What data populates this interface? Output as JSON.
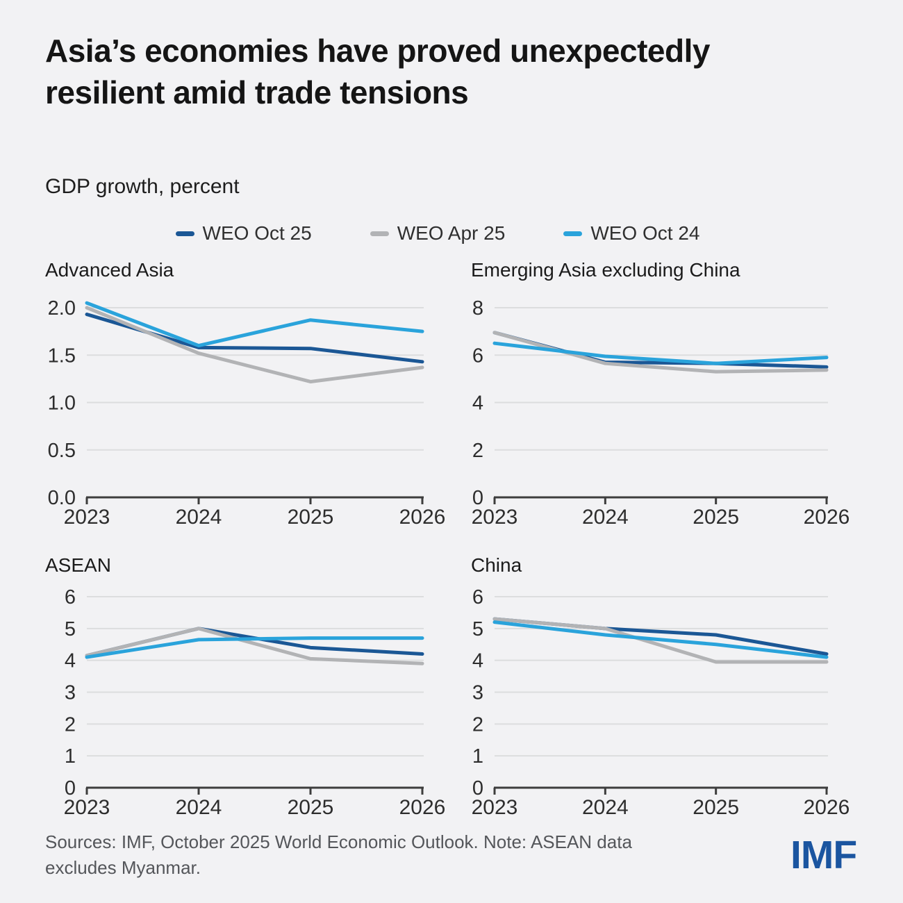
{
  "page": {
    "title": "Asia’s economies have proved unexpectedly resilient amid trade tensions",
    "subtitle": "GDP growth, percent"
  },
  "colors": {
    "weo_oct_25": "#1b5795",
    "weo_apr_25": "#b2b3b5",
    "weo_oct_24": "#2aa3db",
    "gridline": "#dcddde",
    "axis": "#3d3d3d",
    "background": "#f2f2f4",
    "logo_blue": "#1b55a0"
  },
  "legend": {
    "items": [
      {
        "label": "WEO Oct 25",
        "series": "weo_oct_25"
      },
      {
        "label": "WEO Apr 25",
        "series": "weo_apr_25"
      },
      {
        "label": "WEO Oct 24",
        "series": "weo_oct_24"
      }
    ]
  },
  "chart_data": [
    {
      "type": "line",
      "title": "Advanced Asia",
      "x": [
        "2023",
        "2024",
        "2025",
        "2026"
      ],
      "ylim": [
        0,
        2
      ],
      "grid": true,
      "legend_position": "top",
      "yticks": [
        {
          "v": 0,
          "label": "0.0"
        },
        {
          "v": 0.5,
          "label": "0.5"
        },
        {
          "v": 1,
          "label": "1.0"
        },
        {
          "v": 1.5,
          "label": "1.5"
        },
        {
          "v": 2,
          "label": "2.0"
        }
      ],
      "series": [
        {
          "name": "WEO Oct 25",
          "color_key": "weo_oct_25",
          "values": [
            1.93,
            1.58,
            1.57,
            1.43
          ]
        },
        {
          "name": "WEO Apr 25",
          "color_key": "weo_apr_25",
          "values": [
            2.0,
            1.52,
            1.22,
            1.37
          ]
        },
        {
          "name": "WEO Oct 24",
          "color_key": "weo_oct_24",
          "values": [
            2.05,
            1.6,
            1.87,
            1.75
          ]
        }
      ]
    },
    {
      "type": "line",
      "title": "Emerging Asia excluding China",
      "x": [
        "2023",
        "2024",
        "2025",
        "2026"
      ],
      "ylim": [
        0,
        8
      ],
      "grid": true,
      "legend_position": "top",
      "yticks": [
        {
          "v": 0,
          "label": "0"
        },
        {
          "v": 2,
          "label": "2"
        },
        {
          "v": 4,
          "label": "4"
        },
        {
          "v": 6,
          "label": "6"
        },
        {
          "v": 8,
          "label": "8"
        }
      ],
      "series": [
        {
          "name": "WEO Oct 25",
          "color_key": "weo_oct_25",
          "values": [
            6.95,
            5.7,
            5.65,
            5.5
          ]
        },
        {
          "name": "WEO Apr 25",
          "color_key": "weo_apr_25",
          "values": [
            6.95,
            5.65,
            5.3,
            5.37
          ]
        },
        {
          "name": "WEO Oct 24",
          "color_key": "weo_oct_24",
          "values": [
            6.5,
            5.95,
            5.65,
            5.9
          ]
        }
      ]
    },
    {
      "type": "line",
      "title": "ASEAN",
      "x": [
        "2023",
        "2024",
        "2025",
        "2026"
      ],
      "ylim": [
        0,
        6
      ],
      "grid": true,
      "legend_position": "top",
      "yticks": [
        {
          "v": 0,
          "label": "0"
        },
        {
          "v": 1,
          "label": "1"
        },
        {
          "v": 2,
          "label": "2"
        },
        {
          "v": 3,
          "label": "3"
        },
        {
          "v": 4,
          "label": "4"
        },
        {
          "v": 5,
          "label": "5"
        },
        {
          "v": 6,
          "label": "6"
        }
      ],
      "series": [
        {
          "name": "WEO Oct 25",
          "color_key": "weo_oct_25",
          "values": [
            4.15,
            5.0,
            4.4,
            4.2
          ]
        },
        {
          "name": "WEO Apr 25",
          "color_key": "weo_apr_25",
          "values": [
            4.15,
            5.0,
            4.05,
            3.9
          ]
        },
        {
          "name": "WEO Oct 24",
          "color_key": "weo_oct_24",
          "values": [
            4.1,
            4.65,
            4.7,
            4.7
          ]
        }
      ]
    },
    {
      "type": "line",
      "title": "China",
      "x": [
        "2023",
        "2024",
        "2025",
        "2026"
      ],
      "ylim": [
        0,
        6
      ],
      "grid": true,
      "legend_position": "top",
      "yticks": [
        {
          "v": 0,
          "label": "0"
        },
        {
          "v": 1,
          "label": "1"
        },
        {
          "v": 2,
          "label": "2"
        },
        {
          "v": 3,
          "label": "3"
        },
        {
          "v": 4,
          "label": "4"
        },
        {
          "v": 5,
          "label": "5"
        },
        {
          "v": 6,
          "label": "6"
        }
      ],
      "series": [
        {
          "name": "WEO Oct 25",
          "color_key": "weo_oct_25",
          "values": [
            5.3,
            5.0,
            4.8,
            4.2
          ]
        },
        {
          "name": "WEO Apr 25",
          "color_key": "weo_apr_25",
          "values": [
            5.3,
            5.0,
            3.95,
            3.95
          ]
        },
        {
          "name": "WEO Oct 24",
          "color_key": "weo_oct_24",
          "values": [
            5.2,
            4.8,
            4.5,
            4.1
          ]
        }
      ]
    }
  ],
  "footer": {
    "line1": "Sources: IMF, October 2025 World Economic Outlook. Note: ASEAN data",
    "line2": "excludes Myanmar.",
    "logo_text": "IMF"
  }
}
